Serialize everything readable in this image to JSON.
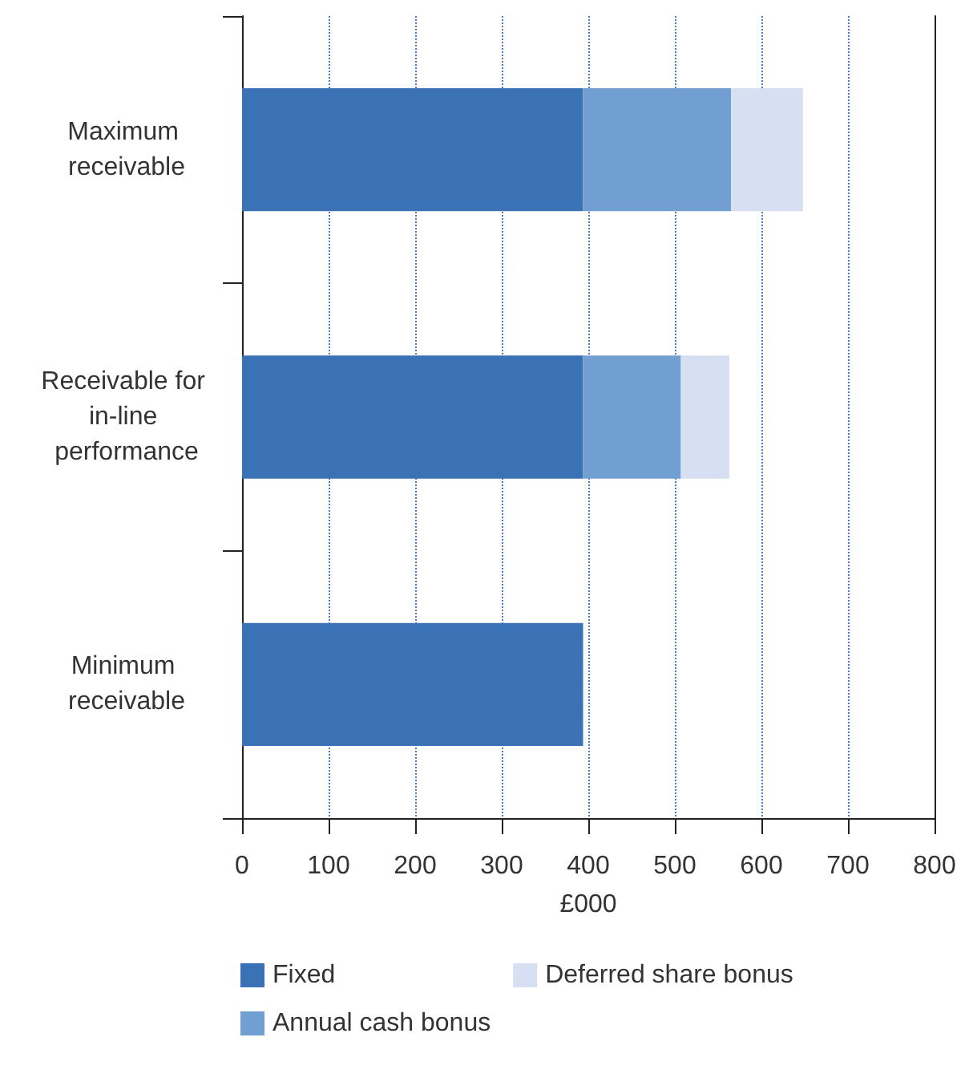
{
  "chart_data": {
    "type": "bar",
    "orientation": "horizontal",
    "stacked": true,
    "xlabel": "£000",
    "categories": [
      "Maximum receivable",
      "Receivable for in-line performance",
      "Minimum receivable"
    ],
    "series": [
      {
        "name": "Fixed",
        "color": "#3a72b5",
        "values": [
          394,
          394,
          394
        ]
      },
      {
        "name": "Annual cash bonus",
        "color": "#729fd2",
        "values": [
          171,
          113,
          null
        ]
      },
      {
        "name": "Deferred share bonus",
        "color": "#d7e0f2",
        "values": [
          83,
          56,
          null
        ]
      }
    ],
    "xlim": [
      0,
      800
    ],
    "xticks": [
      0,
      100,
      200,
      300,
      400,
      500,
      600,
      700,
      800
    ],
    "grid": "x",
    "legend": "bottom"
  }
}
